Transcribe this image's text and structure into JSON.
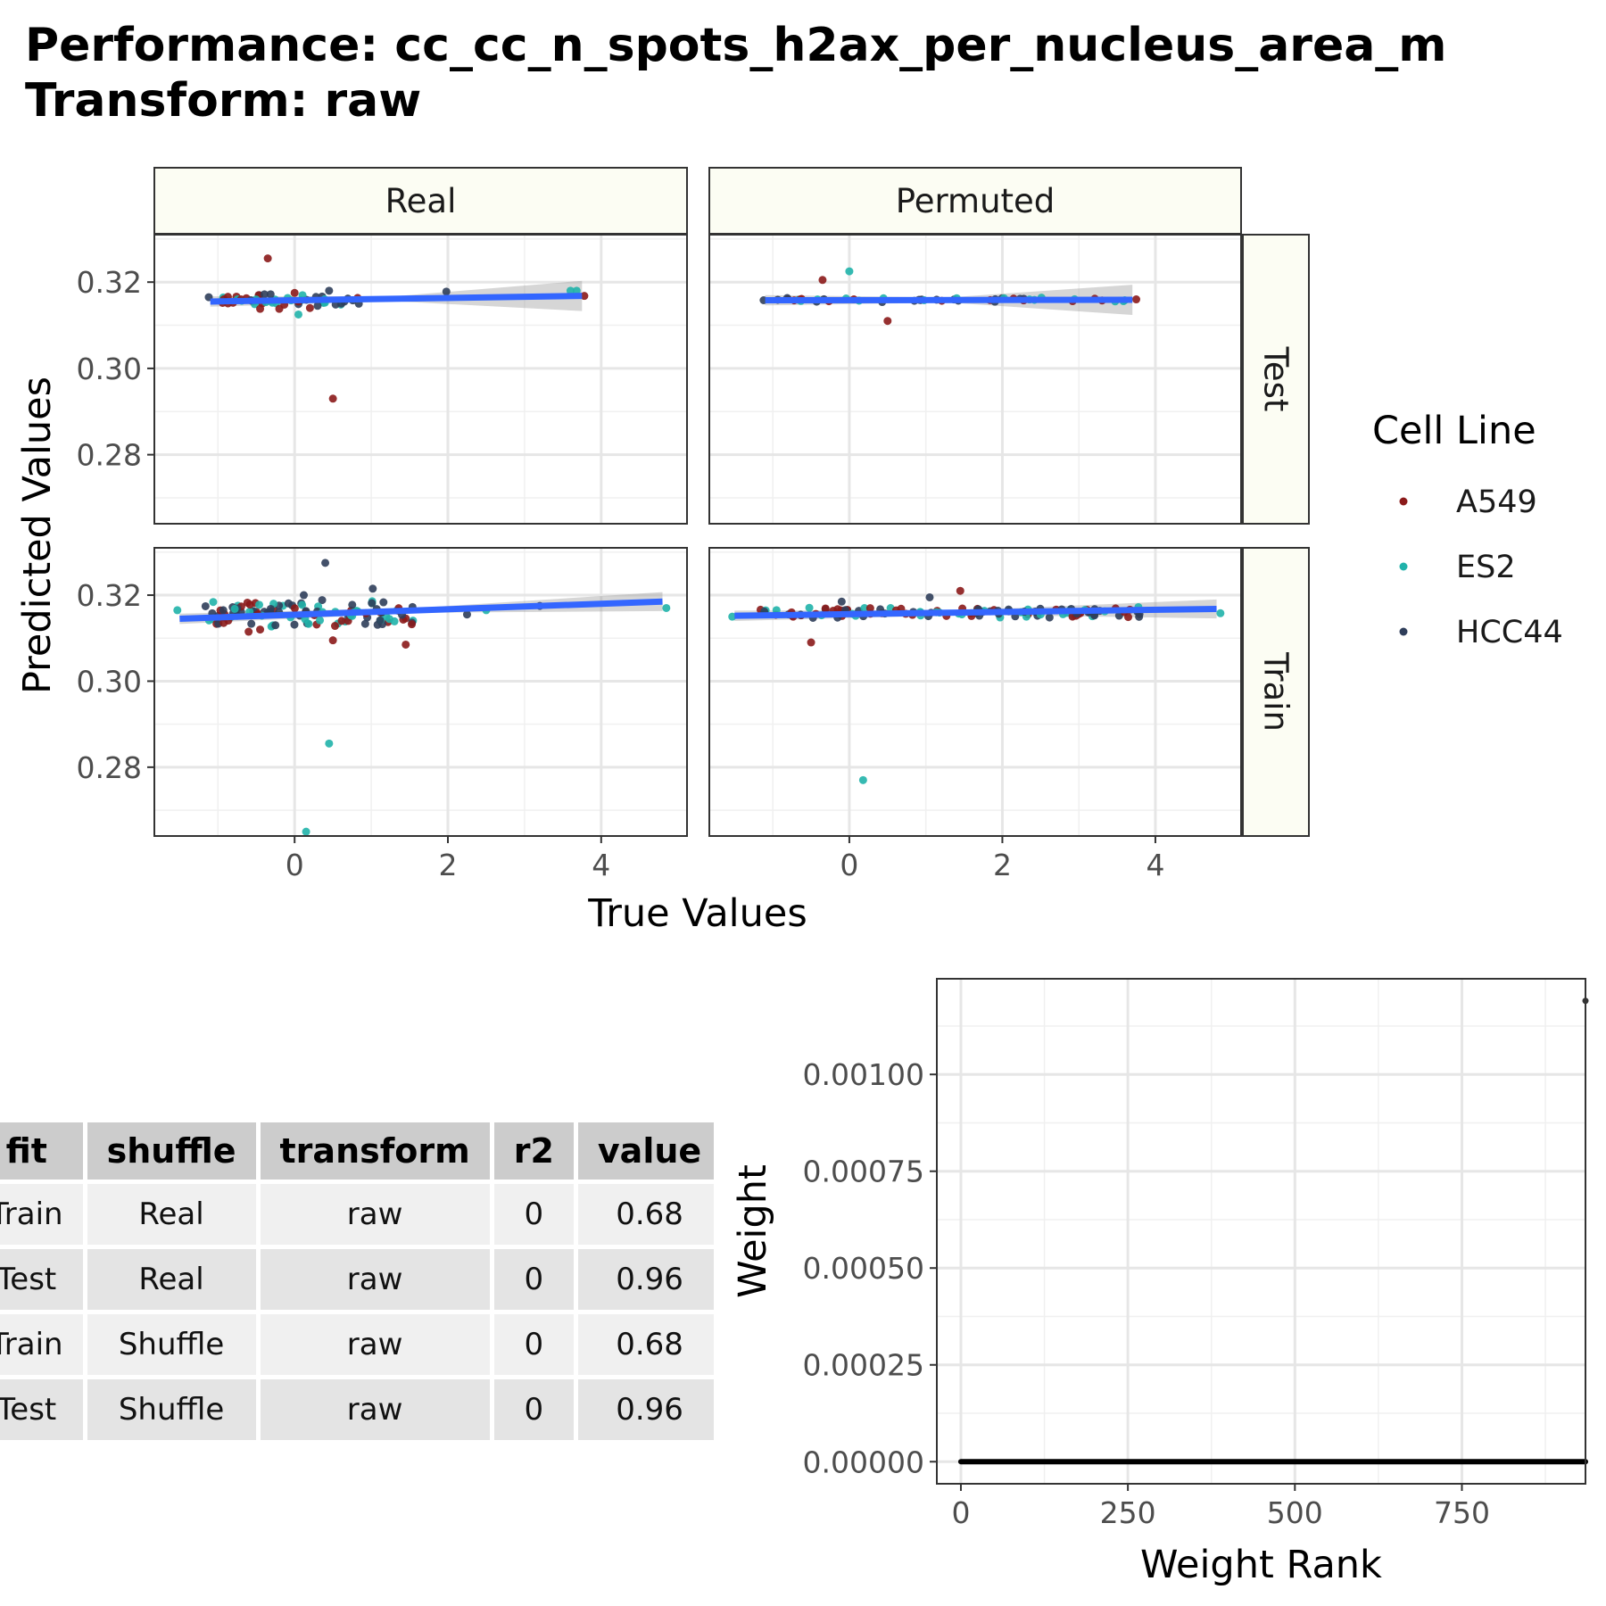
{
  "title": {
    "line1": "Performance: cc_cc_n_spots_h2ax_per_nucleus_area_m",
    "line2": "Transform: raw"
  },
  "chart_data": [
    {
      "type": "scatter",
      "facets": {
        "columns": [
          "Real",
          "Permuted"
        ],
        "rows": [
          "Test",
          "Train"
        ]
      },
      "xlabel": "True Values",
      "ylabel": "Predicted Values",
      "xticks": [
        0,
        2,
        4
      ],
      "yticks": [
        0.28,
        0.3,
        0.32
      ],
      "ytick_labels": [
        "0.28",
        "0.30",
        "0.32"
      ],
      "xlim": [
        -1.83,
        5.12
      ],
      "ylim": [
        0.264,
        0.331
      ],
      "legend": {
        "title": "Cell Line",
        "placement": "right",
        "entries": [
          {
            "name": "A549",
            "color": "#8b1a1a"
          },
          {
            "name": "ES2",
            "color": "#20b2aa"
          },
          {
            "name": "HCC44",
            "color": "#2f3e5a"
          }
        ]
      },
      "fit_line_color": "#3366ff",
      "panels": {
        "Real|Test": {
          "fit": [
            [
              -1.1,
              0.3155
            ],
            [
              3.75,
              0.3168
            ]
          ],
          "points": [
            {
              "x": -0.35,
              "y": 0.3255,
              "c": "A549"
            },
            {
              "x": 0.5,
              "y": 0.293,
              "c": "A549"
            },
            {
              "x": 0.05,
              "y": 0.3125,
              "c": "ES2"
            },
            {
              "x": 1.98,
              "y": 0.3178,
              "c": "HCC44"
            },
            {
              "x": 3.78,
              "y": 0.3168,
              "c": "A549"
            },
            {
              "x": 3.6,
              "y": 0.318,
              "c": "ES2"
            },
            {
              "x": 3.68,
              "y": 0.318,
              "c": "ES2"
            },
            {
              "x": -1.12,
              "y": 0.3165,
              "c": "HCC44"
            },
            {
              "x": 0.45,
              "y": 0.318,
              "c": "HCC44"
            },
            {
              "x": -0.45,
              "y": 0.3138,
              "c": "A549"
            },
            {
              "x": 0.2,
              "y": 0.314,
              "c": "A549"
            },
            {
              "x": -0.2,
              "y": 0.3138,
              "c": "A549"
            },
            {
              "x": 0.65,
              "y": 0.3155,
              "c": "HCC44"
            },
            {
              "x": 0.3,
              "y": 0.3145,
              "c": "HCC44"
            },
            {
              "x": -0.7,
              "y": 0.316,
              "c": "A549"
            },
            {
              "x": 0.0,
              "y": 0.3175,
              "c": "A549"
            }
          ],
          "cloud": {
            "n": 45,
            "x": [
              -1.0,
              0.9
            ],
            "y": [
              0.3145,
              0.3175
            ],
            "seed": 11
          }
        },
        "Permuted|Test": {
          "fit": [
            [
              -1.1,
              0.3158
            ],
            [
              3.7,
              0.3159
            ]
          ],
          "points": [
            {
              "x": -0.35,
              "y": 0.3205,
              "c": "A549"
            },
            {
              "x": 0.0,
              "y": 0.3225,
              "c": "ES2"
            },
            {
              "x": 0.5,
              "y": 0.311,
              "c": "A549"
            },
            {
              "x": 3.75,
              "y": 0.316,
              "c": "A549"
            },
            {
              "x": 3.6,
              "y": 0.3158,
              "c": "ES2"
            },
            {
              "x": -1.12,
              "y": 0.3158,
              "c": "HCC44"
            }
          ],
          "cloud": {
            "n": 45,
            "x": [
              -1.0,
              3.6
            ],
            "y": [
              0.3152,
              0.3165
            ],
            "seed": 23
          }
        },
        "Real|Train": {
          "fit": [
            [
              -1.5,
              0.3145
            ],
            [
              4.8,
              0.3185
            ]
          ],
          "points": [
            {
              "x": 0.4,
              "y": 0.3275,
              "c": "HCC44"
            },
            {
              "x": 1.02,
              "y": 0.3215,
              "c": "HCC44"
            },
            {
              "x": 0.45,
              "y": 0.2855,
              "c": "ES2"
            },
            {
              "x": 0.15,
              "y": 0.265,
              "c": "ES2"
            },
            {
              "x": 0.5,
              "y": 0.3095,
              "c": "A549"
            },
            {
              "x": 1.45,
              "y": 0.3085,
              "c": "A549"
            },
            {
              "x": 4.85,
              "y": 0.317,
              "c": "ES2"
            },
            {
              "x": -1.53,
              "y": 0.3165,
              "c": "ES2"
            },
            {
              "x": 2.25,
              "y": 0.3155,
              "c": "HCC44"
            },
            {
              "x": 2.5,
              "y": 0.3165,
              "c": "ES2"
            },
            {
              "x": 3.2,
              "y": 0.3175,
              "c": "HCC44"
            },
            {
              "x": 0.12,
              "y": 0.32,
              "c": "HCC44"
            },
            {
              "x": -0.6,
              "y": 0.3115,
              "c": "A549"
            },
            {
              "x": -0.45,
              "y": 0.312,
              "c": "A549"
            },
            {
              "x": -0.25,
              "y": 0.313,
              "c": "HCC44"
            }
          ],
          "cloud": {
            "n": 110,
            "x": [
              -1.2,
              1.6
            ],
            "y": [
              0.312,
              0.319
            ],
            "seed": 37
          }
        },
        "Permuted|Train": {
          "fit": [
            [
              -1.5,
              0.3152
            ],
            [
              4.8,
              0.3168
            ]
          ],
          "points": [
            {
              "x": 0.18,
              "y": 0.277,
              "c": "ES2"
            },
            {
              "x": -0.5,
              "y": 0.309,
              "c": "A549"
            },
            {
              "x": 1.45,
              "y": 0.321,
              "c": "A549"
            },
            {
              "x": 1.05,
              "y": 0.3195,
              "c": "HCC44"
            },
            {
              "x": -0.1,
              "y": 0.3185,
              "c": "HCC44"
            },
            {
              "x": 4.85,
              "y": 0.3158,
              "c": "ES2"
            },
            {
              "x": -1.53,
              "y": 0.315,
              "c": "ES2"
            },
            {
              "x": 2.9,
              "y": 0.3168,
              "c": "HCC44"
            },
            {
              "x": 3.2,
              "y": 0.3155,
              "c": "HCC44"
            },
            {
              "x": 2.5,
              "y": 0.3155,
              "c": "ES2"
            }
          ],
          "cloud": {
            "n": 110,
            "x": [
              -1.2,
              3.8
            ],
            "y": [
              0.3145,
              0.3175
            ],
            "seed": 53
          }
        }
      }
    },
    {
      "type": "scatter",
      "xlabel": "Weight Rank",
      "ylabel": "Weight",
      "xticks": [
        0,
        250,
        500,
        750
      ],
      "xtick_labels": [
        "0",
        "250",
        "500",
        "750"
      ],
      "yticks": [
        0,
        0.00025,
        0.0005,
        0.00075,
        0.001
      ],
      "ytick_labels": [
        "0.00000",
        "0.00025",
        "0.00050",
        "0.00075",
        "0.00100"
      ],
      "xlim": [
        -36,
        935
      ],
      "ylim": [
        -5.7e-05,
        0.001247
      ],
      "zero_run": {
        "x": [
          0,
          935
        ],
        "y": 0
      },
      "outlier": {
        "x": 935,
        "y": 0.00119
      }
    }
  ],
  "table": {
    "headers": [
      "fit",
      "shuffle",
      "transform",
      "r2",
      "value"
    ],
    "rows": [
      [
        "Train",
        "Real",
        "raw",
        "0",
        "0.68"
      ],
      [
        "Test",
        "Real",
        "raw",
        "0",
        "0.96"
      ],
      [
        "Train",
        "Shuffle",
        "raw",
        "0",
        "0.68"
      ],
      [
        "Test",
        "Shuffle",
        "raw",
        "0",
        "0.96"
      ]
    ]
  }
}
